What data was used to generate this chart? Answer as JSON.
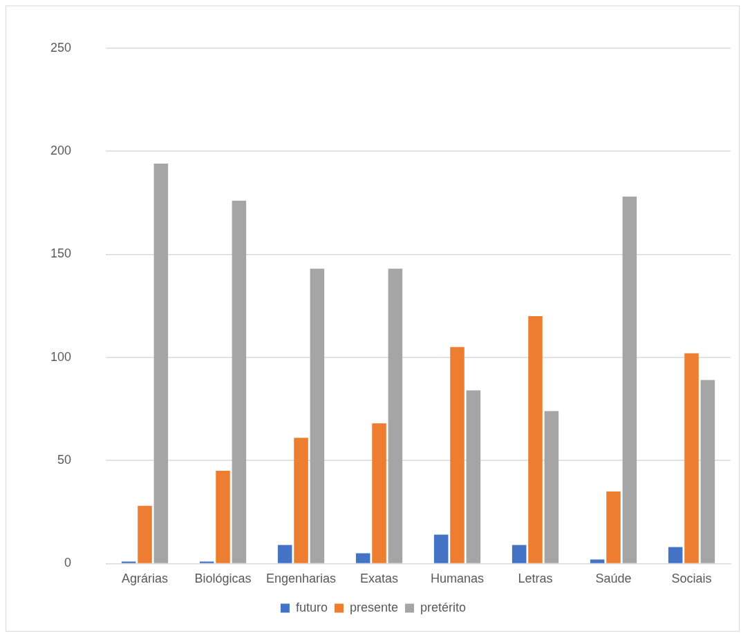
{
  "chart_data": {
    "type": "bar",
    "categories": [
      "Agrárias",
      "Biológicas",
      "Engenharias",
      "Exatas",
      "Humanas",
      "Letras",
      "Saúde",
      "Sociais"
    ],
    "series": [
      {
        "name": "futuro",
        "color": "#4472c4",
        "values": [
          1,
          1,
          9,
          5,
          14,
          9,
          2,
          8
        ]
      },
      {
        "name": "presente",
        "color": "#ed7d31",
        "values": [
          28,
          45,
          61,
          68,
          105,
          120,
          35,
          102
        ]
      },
      {
        "name": "pretérito",
        "color": "#a5a5a5",
        "values": [
          194,
          176,
          143,
          143,
          84,
          74,
          178,
          89
        ]
      }
    ],
    "ylim": [
      0,
      250
    ],
    "yticks": [
      0,
      50,
      100,
      150,
      200,
      250
    ],
    "grid": "y",
    "legend": "bottom"
  }
}
